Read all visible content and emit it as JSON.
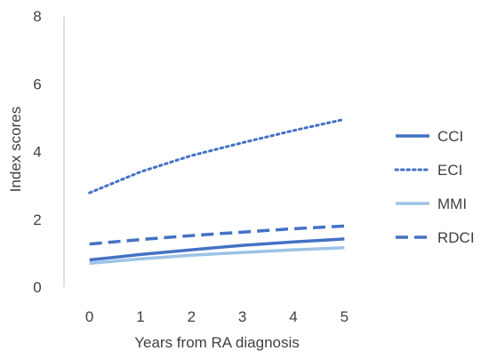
{
  "chart_data": {
    "type": "line",
    "title": "",
    "xlabel": "Years from RA diagnosis",
    "ylabel": "Index scores",
    "x": [
      0,
      1,
      2,
      3,
      4,
      5
    ],
    "xlim": [
      -0.5,
      5.5
    ],
    "ylim": [
      0,
      8
    ],
    "yticks": [
      0,
      2,
      4,
      6,
      8
    ],
    "grid": false,
    "legend_position": "right",
    "series": [
      {
        "name": "CCI",
        "values": [
          0.8,
          0.96,
          1.1,
          1.23,
          1.33,
          1.42
        ],
        "color": "#4472C4",
        "style": "solid"
      },
      {
        "name": "ECI",
        "values": [
          2.78,
          3.4,
          3.88,
          4.26,
          4.62,
          4.95
        ],
        "color": "#4472C4",
        "style": "dotted"
      },
      {
        "name": "MMI",
        "values": [
          0.7,
          0.83,
          0.94,
          1.02,
          1.1,
          1.16
        ],
        "color": "#9DC3E6",
        "style": "solid"
      },
      {
        "name": "RDCI",
        "values": [
          1.27,
          1.4,
          1.52,
          1.62,
          1.72,
          1.8
        ],
        "color": "#4472C4",
        "style": "dashed"
      }
    ]
  }
}
